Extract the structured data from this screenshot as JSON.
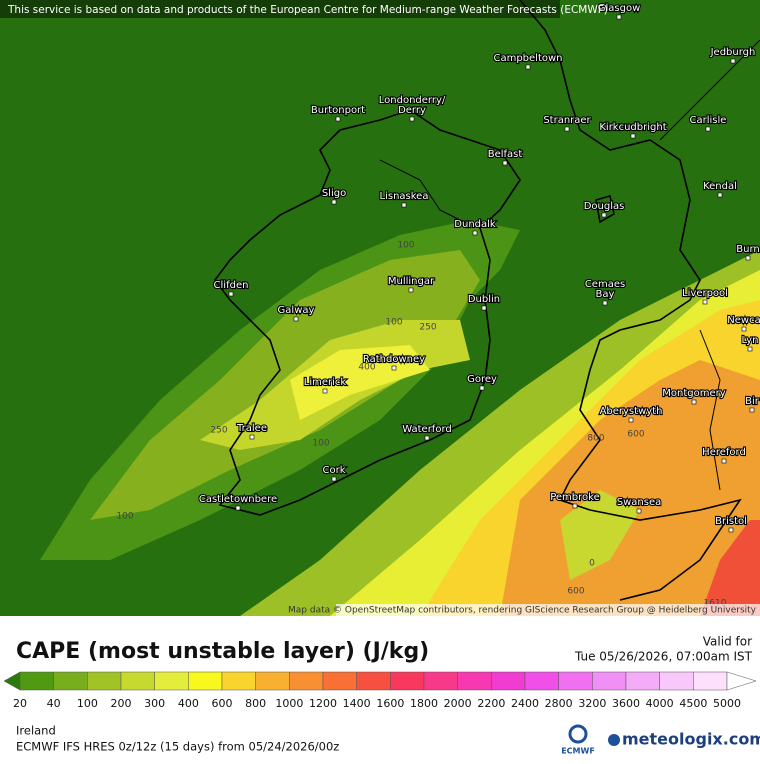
{
  "map": {
    "attribution": "This service is based on data and products of the European Centre for Medium-range Weather Forecasts (ECMWF)",
    "credits": "Map data © OpenStreetMap contributors, rendering GIScience Research Group @ Heidelberg University",
    "cities": [
      "Glasgow",
      "Campbeltown",
      "Jedburgh",
      "Burtonport",
      [
        "Londonderry/",
        "Derry"
      ],
      "Stranraer",
      "Kirkcudbright",
      "Carlisle",
      "Belfast",
      "Kendal",
      "Sligo",
      "Lisnaskea",
      "Douglas",
      "Dundalk",
      "Burn",
      "Clifden",
      "Mullingar",
      [
        "Cemaes",
        "Bay"
      ],
      "Liverpool",
      "Dublin",
      "Galway",
      "Newca",
      "Lyn",
      "Rathdowney",
      "Limerick",
      "Gorey",
      "Montgomery",
      "Bir",
      "Aberystwyth",
      "Tralee",
      "Waterford",
      "Hereford",
      "Cork",
      "Pembroke",
      "Swansea",
      "Castletownbere",
      "Bristol"
    ],
    "contour_labels": [
      "100",
      "100",
      "250",
      "400",
      "250",
      "100",
      "100",
      "800",
      "600",
      "0",
      "600",
      "1610"
    ]
  },
  "legend": {
    "title": "CAPE (most unstable layer) (J/kg)",
    "ticks": [
      20,
      40,
      100,
      200,
      300,
      400,
      600,
      800,
      1000,
      1200,
      1400,
      1600,
      1800,
      2000,
      2200,
      2400,
      2800,
      3200,
      3600,
      4000,
      4500,
      5000
    ],
    "below_color": "#2d7a0c",
    "above_color": "#ffffff",
    "colors": [
      "#4f9a10",
      "#78ad1c",
      "#a2c326",
      "#c6d92e",
      "#e4ee3a",
      "#f8f81e",
      "#f8d42c",
      "#f8b030",
      "#f89032",
      "#f87034",
      "#f85040",
      "#f8385c",
      "#f83888",
      "#f838b0",
      "#f03cd0",
      "#f050e8",
      "#f070f0",
      "#f090f4",
      "#f4acf8",
      "#f8c8fa",
      "#fce0fc"
    ]
  },
  "header": {
    "valid_label": "Valid for",
    "valid_time": "Tue 05/26/2026, 07:00am IST"
  },
  "footer": {
    "region": "Ireland",
    "model": "ECMWF IFS HRES 0z/12z (15 days) from 05/24/2026/00z",
    "ecmwf_logo": "ECMWF",
    "brand": "meteologix.com"
  }
}
